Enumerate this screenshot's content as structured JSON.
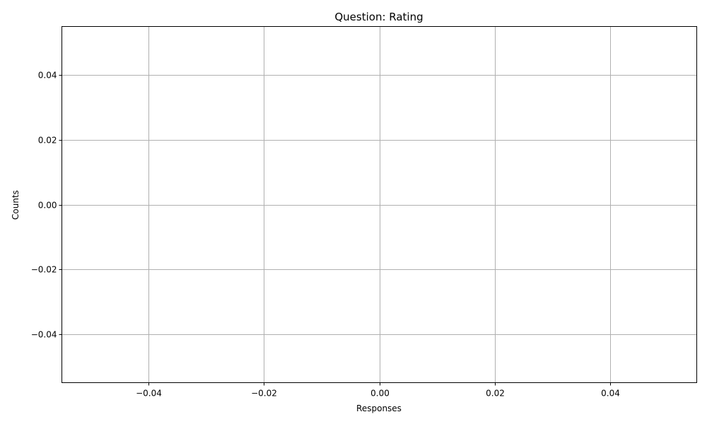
{
  "chart_data": {
    "type": "scatter",
    "title": "Question: Rating",
    "xlabel": "Responses",
    "ylabel": "Counts",
    "x": [],
    "y": [],
    "xlim": [
      -0.055,
      0.055
    ],
    "ylim": [
      -0.055,
      0.055
    ],
    "xticks": [
      -0.04,
      -0.02,
      0.0,
      0.02,
      0.04
    ],
    "yticks": [
      -0.04,
      -0.02,
      0.0,
      0.02,
      0.04
    ],
    "xtick_labels": [
      "−0.04",
      "−0.02",
      "0.00",
      "0.02",
      "0.04"
    ],
    "ytick_labels": [
      "−0.04",
      "−0.02",
      "0.00",
      "0.02",
      "0.04"
    ],
    "grid": true,
    "legend": "none",
    "colors": {
      "grid": "#b0b0b0",
      "axes": "#000000",
      "background": "#ffffff"
    }
  }
}
